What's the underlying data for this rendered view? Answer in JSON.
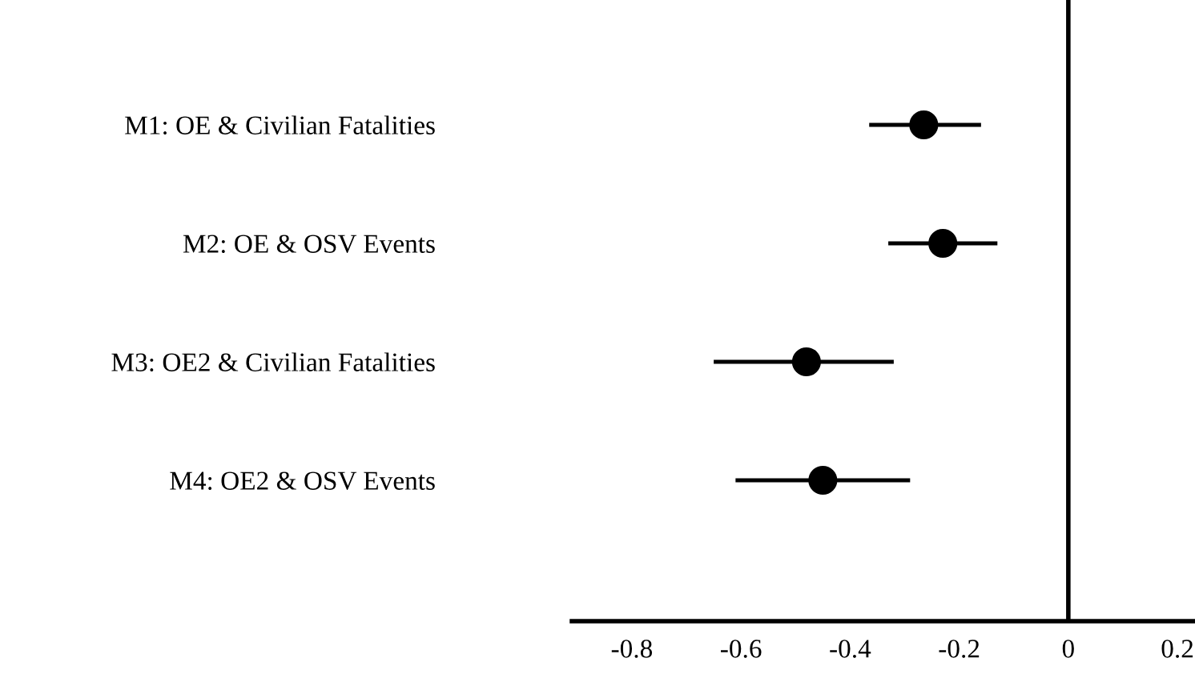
{
  "chart_data": {
    "type": "scatter",
    "orientation": "horizontal",
    "categories": [
      "M1: OE & Civilian Fatalities",
      "M2: OE & OSV Events",
      "M3: OE2 & Civilian Fatalities",
      "M4: OE2 & OSV Events"
    ],
    "values": [
      -0.265,
      -0.23,
      -0.48,
      -0.45
    ],
    "errors": [
      [
        -0.365,
        -0.16
      ],
      [
        -0.33,
        -0.13
      ],
      [
        -0.65,
        -0.32
      ],
      [
        -0.61,
        -0.29
      ]
    ],
    "color": "#000000",
    "marker": "circle",
    "xlim": [
      -0.91,
      0.23
    ],
    "xticks": [
      -0.8,
      -0.6,
      -0.4,
      -0.2,
      0,
      0.2
    ],
    "ref_lines": [
      {
        "axis": "x",
        "value": 0,
        "color": "#000000"
      }
    ],
    "grid": false,
    "legend": false
  }
}
